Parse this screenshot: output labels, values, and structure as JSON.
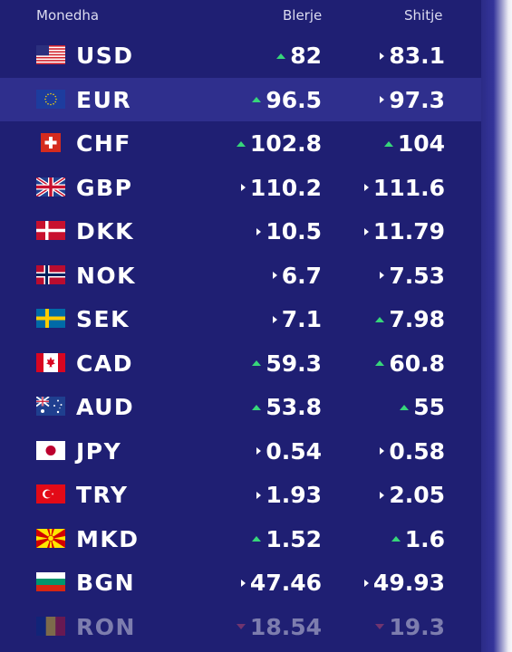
{
  "header": {
    "currency": "Monedha",
    "buy": "Blerje",
    "sell": "Shitje"
  },
  "colors": {
    "panel": "#1f1f73",
    "selected_row": "#2f2f8d",
    "up": "#37d67a",
    "flat": "#ffffff",
    "down": "#e2536b"
  },
  "rates": [
    {
      "code": "USD",
      "flag": "us-flag-icon",
      "buy": "82",
      "buy_trend": "up",
      "sell": "83.1",
      "sell_trend": "flat"
    },
    {
      "code": "EUR",
      "flag": "eu-flag-icon",
      "buy": "96.5",
      "buy_trend": "up",
      "sell": "97.3",
      "sell_trend": "flat",
      "selected": true
    },
    {
      "code": "CHF",
      "flag": "ch-flag-icon",
      "buy": "102.8",
      "buy_trend": "up",
      "sell": "104",
      "sell_trend": "up"
    },
    {
      "code": "GBP",
      "flag": "gb-flag-icon",
      "buy": "110.2",
      "buy_trend": "flat",
      "sell": "111.6",
      "sell_trend": "flat"
    },
    {
      "code": "DKK",
      "flag": "dk-flag-icon",
      "buy": "10.5",
      "buy_trend": "flat",
      "sell": "11.79",
      "sell_trend": "flat"
    },
    {
      "code": "NOK",
      "flag": "no-flag-icon",
      "buy": "6.7",
      "buy_trend": "flat",
      "sell": "7.53",
      "sell_trend": "flat"
    },
    {
      "code": "SEK",
      "flag": "se-flag-icon",
      "buy": "7.1",
      "buy_trend": "flat",
      "sell": "7.98",
      "sell_trend": "up"
    },
    {
      "code": "CAD",
      "flag": "ca-flag-icon",
      "buy": "59.3",
      "buy_trend": "up",
      "sell": "60.8",
      "sell_trend": "up"
    },
    {
      "code": "AUD",
      "flag": "au-flag-icon",
      "buy": "53.8",
      "buy_trend": "up",
      "sell": "55",
      "sell_trend": "up"
    },
    {
      "code": "JPY",
      "flag": "jp-flag-icon",
      "buy": "0.54",
      "buy_trend": "flat",
      "sell": "0.58",
      "sell_trend": "flat"
    },
    {
      "code": "TRY",
      "flag": "tr-flag-icon",
      "buy": "1.93",
      "buy_trend": "flat",
      "sell": "2.05",
      "sell_trend": "flat"
    },
    {
      "code": "MKD",
      "flag": "mk-flag-icon",
      "buy": "1.52",
      "buy_trend": "up",
      "sell": "1.6",
      "sell_trend": "up"
    },
    {
      "code": "BGN",
      "flag": "bg-flag-icon",
      "buy": "47.46",
      "buy_trend": "flat",
      "sell": "49.93",
      "sell_trend": "flat"
    },
    {
      "code": "RON",
      "flag": "ro-flag-icon",
      "buy": "18.54",
      "buy_trend": "down",
      "sell": "19.3",
      "sell_trend": "down",
      "faded": true
    }
  ]
}
